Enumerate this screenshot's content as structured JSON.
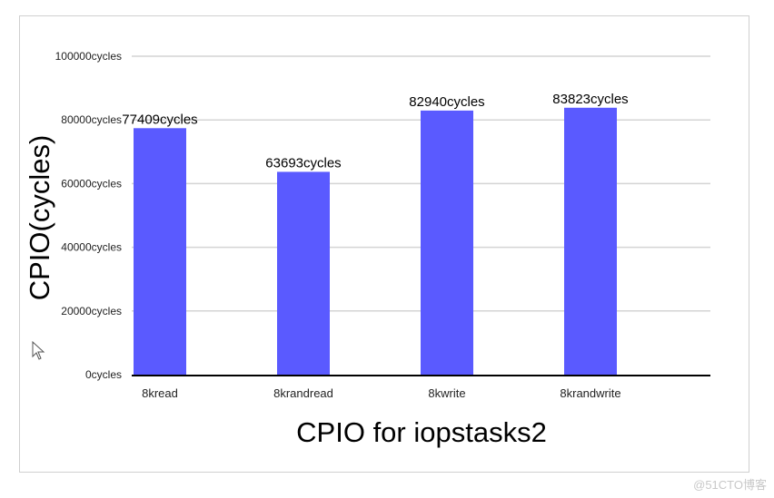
{
  "chart_data": {
    "type": "bar",
    "categories": [
      "8kread",
      "8krandread",
      "8kwrite",
      "8krandwrite"
    ],
    "values": [
      77409,
      63693,
      82940,
      83823
    ],
    "value_labels": [
      "77409cycles",
      "63693cycles",
      "82940cycles",
      "83823cycles"
    ],
    "title": "",
    "xlabel": "CPIO for iopstasks2",
    "ylabel": "CPIO(cycles)",
    "ylim": [
      0,
      100000
    ],
    "yticks": [
      0,
      20000,
      40000,
      60000,
      80000,
      100000
    ],
    "ytick_labels": [
      "0cycles",
      "20000cycles",
      "40000cycles",
      "60000cycles",
      "80000cycles",
      "100000cycles"
    ],
    "grid": true,
    "legend": "none",
    "bar_color": "#5a5aff",
    "grid_color": "#d4d4d4",
    "axis_color": "#000000"
  },
  "watermark": "@51CTO博客",
  "icons": {
    "cursor": "mouse-pointer-icon"
  }
}
